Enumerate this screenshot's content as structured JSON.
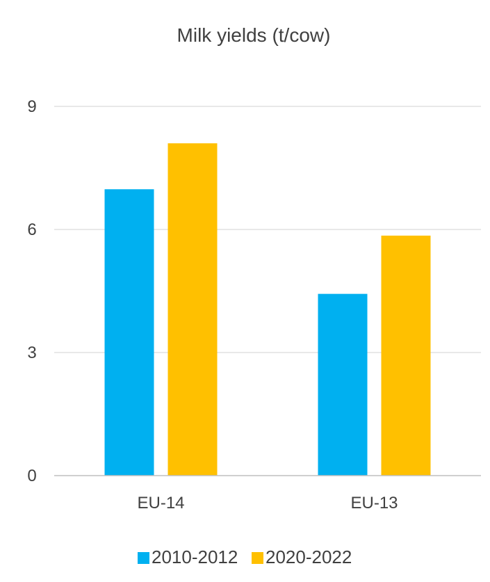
{
  "chart_data": {
    "type": "bar",
    "title": "Milk yields (t/cow)",
    "categories": [
      "EU-14",
      "EU-13"
    ],
    "series": [
      {
        "name": "2010-2012",
        "values": [
          6.98,
          4.43
        ],
        "color": "#00B0F0"
      },
      {
        "name": "2020-2022",
        "values": [
          8.1,
          5.85
        ],
        "color": "#FFC000"
      }
    ],
    "yticks": [
      "0",
      "3",
      "6",
      "9"
    ],
    "ylim": [
      0,
      9
    ],
    "grid": true,
    "legend_position": "bottom",
    "gridline_color": "#D9D9D9",
    "axis_color": "#BFBFBF",
    "text_color": "#404040"
  }
}
